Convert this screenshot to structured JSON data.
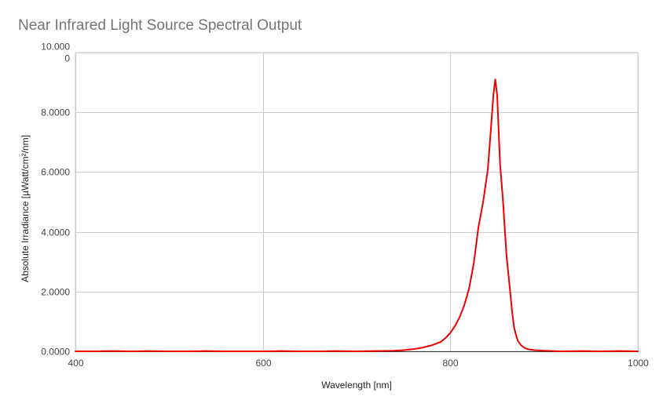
{
  "chart_data": {
    "type": "line",
    "title": "Near Infrared Light Source Spectral Output",
    "xlabel": "Wavelength [nm]",
    "ylabel": "Absolute Irradiance [µWatt/cm²/nm]",
    "xlim": [
      400,
      1000
    ],
    "ylim": [
      0,
      10
    ],
    "x_ticks": [
      400,
      600,
      800,
      1000
    ],
    "x_tick_labels": [
      "400",
      "600",
      "800",
      "1000"
    ],
    "y_ticks": [
      0,
      2,
      4,
      6,
      8,
      10
    ],
    "y_tick_labels": [
      "0.0000",
      "2.0000",
      "4.0000",
      "6.0000",
      "8.0000",
      "10.000\n0"
    ],
    "grid": true,
    "legend": "none",
    "series": [
      {
        "color": "#ee0000",
        "x": [
          400,
          420,
          440,
          460,
          480,
          500,
          520,
          540,
          560,
          580,
          600,
          620,
          640,
          660,
          680,
          700,
          720,
          740,
          750,
          760,
          770,
          780,
          790,
          795,
          800,
          805,
          810,
          815,
          820,
          825,
          830,
          835,
          840,
          843,
          846,
          848,
          850,
          853,
          856,
          860,
          864,
          866,
          868,
          870,
          872,
          875,
          878,
          881,
          885,
          890,
          895,
          900,
          910,
          920,
          940,
          960,
          980,
          1000
        ],
        "y": [
          0.0,
          0.0,
          0.01,
          0.0,
          0.01,
          0.0,
          0.0,
          0.01,
          0.0,
          0.0,
          0.0,
          0.01,
          0.0,
          0.0,
          0.01,
          0.0,
          0.01,
          0.02,
          0.04,
          0.07,
          0.12,
          0.2,
          0.32,
          0.45,
          0.62,
          0.85,
          1.15,
          1.55,
          2.1,
          2.95,
          4.15,
          5.0,
          6.1,
          7.3,
          8.6,
          9.1,
          8.55,
          6.3,
          5.1,
          3.2,
          1.95,
          1.3,
          0.8,
          0.55,
          0.35,
          0.22,
          0.14,
          0.09,
          0.06,
          0.04,
          0.03,
          0.02,
          0.01,
          0.0,
          0.01,
          0.0,
          0.01,
          0.0
        ]
      }
    ]
  }
}
